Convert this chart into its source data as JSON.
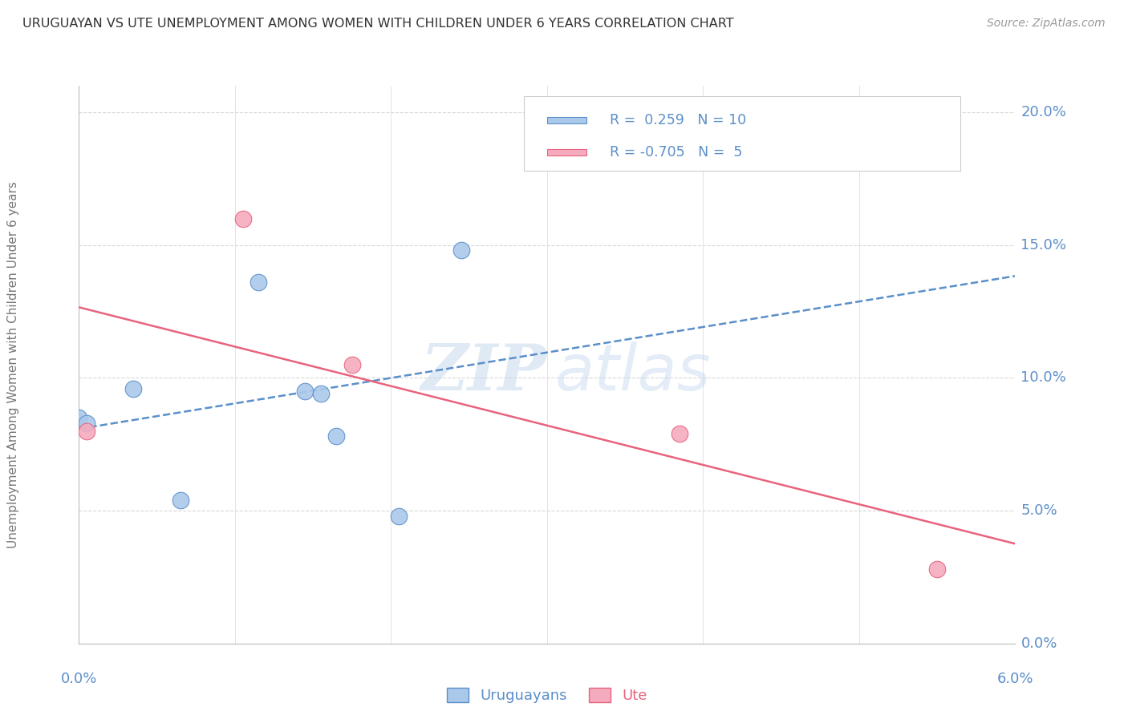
{
  "title": "URUGUAYAN VS UTE UNEMPLOYMENT AMONG WOMEN WITH CHILDREN UNDER 6 YEARS CORRELATION CHART",
  "source": "Source: ZipAtlas.com",
  "ylabel": "Unemployment Among Women with Children Under 6 years",
  "xlim": [
    0.0,
    6.0
  ],
  "ylim": [
    0.0,
    21.0
  ],
  "yticks": [
    0.0,
    5.0,
    10.0,
    15.0,
    20.0
  ],
  "xticks": [
    0.0,
    1.0,
    2.0,
    3.0,
    4.0,
    5.0,
    6.0
  ],
  "uruguayan_x": [
    0.0,
    0.05,
    0.35,
    0.65,
    1.15,
    1.45,
    1.55,
    1.65,
    2.05,
    2.45
  ],
  "uruguayan_y": [
    8.5,
    8.3,
    9.6,
    5.4,
    13.6,
    9.5,
    9.4,
    7.8,
    4.8,
    14.8
  ],
  "ute_x": [
    0.05,
    1.05,
    1.75,
    3.85,
    5.5
  ],
  "ute_y": [
    8.0,
    16.0,
    10.5,
    7.9,
    2.8
  ],
  "uruguayan_R": 0.259,
  "uruguayan_N": 10,
  "ute_R": -0.705,
  "ute_N": 5,
  "uruguayan_color": "#aac9ea",
  "ute_color": "#f5abbe",
  "uruguayan_line_color": "#5b8fc9",
  "ute_line_color": "#e8637e",
  "watermark_zip": "ZIP",
  "watermark_atlas": "atlas",
  "title_color": "#333333",
  "axis_label_color": "#5b8fc9",
  "background_color": "#ffffff",
  "grid_color": "#d8d8d8",
  "legend_text_color": "#333333",
  "legend_border_color": "#cccccc"
}
